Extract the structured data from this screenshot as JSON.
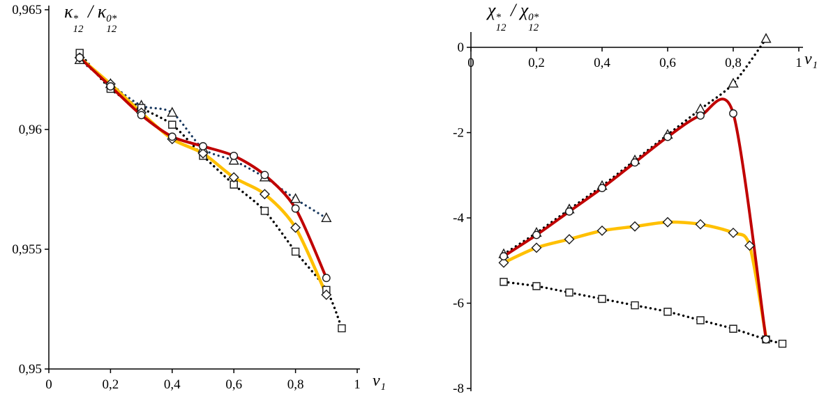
{
  "figure": {
    "background": "#ffffff",
    "axis_color": "#000000"
  },
  "chart_data": [
    {
      "id": "kappa",
      "type": "line",
      "title_segments": [
        {
          "base": "κ",
          "sup": "*",
          "sub": "12"
        },
        {
          "text": " / "
        },
        {
          "base": "κ",
          "sup": "0*",
          "sub": "12"
        }
      ],
      "xlabel_segments": [
        {
          "base": "v",
          "sub": "1"
        }
      ],
      "xlim": [
        0,
        1
      ],
      "ylim": [
        0.95,
        0.965
      ],
      "x_ticks": [
        {
          "v": 0,
          "label": "0"
        },
        {
          "v": 0.2,
          "label": "0,2"
        },
        {
          "v": 0.4,
          "label": "0,4"
        },
        {
          "v": 0.6,
          "label": "0,6"
        },
        {
          "v": 0.8,
          "label": "0,8"
        },
        {
          "v": 1,
          "label": "1"
        }
      ],
      "y_ticks": [
        {
          "v": 0.95,
          "label": "0,95"
        },
        {
          "v": 0.955,
          "label": "0,955"
        },
        {
          "v": 0.96,
          "label": "0,96"
        },
        {
          "v": 0.965,
          "label": "0,965"
        }
      ],
      "series": [
        {
          "name": "triangles",
          "marker": "triangle",
          "line": "dotted",
          "color": "#17375E",
          "width": 3.2,
          "points": [
            [
              0.1,
              0.9629
            ],
            [
              0.2,
              0.9619
            ],
            [
              0.3,
              0.961
            ],
            [
              0.4,
              0.9607
            ],
            [
              0.5,
              0.9592
            ],
            [
              0.6,
              0.9587
            ],
            [
              0.7,
              0.958
            ],
            [
              0.8,
              0.9571
            ],
            [
              0.9,
              0.9563
            ]
          ]
        },
        {
          "name": "squares",
          "marker": "square",
          "line": "dotted",
          "color": "#000000",
          "width": 3.4,
          "points": [
            [
              0.1,
              0.9632
            ],
            [
              0.2,
              0.9617
            ],
            [
              0.3,
              0.9609
            ],
            [
              0.4,
              0.9602
            ],
            [
              0.5,
              0.9589
            ],
            [
              0.6,
              0.9577
            ],
            [
              0.7,
              0.9566
            ],
            [
              0.8,
              0.9549
            ],
            [
              0.9,
              0.9533
            ],
            [
              0.95,
              0.9517
            ]
          ]
        },
        {
          "name": "diamonds",
          "marker": "diamond",
          "line": "solid",
          "color": "#FFC000",
          "width": 4.5,
          "points": [
            [
              0.1,
              0.963
            ],
            [
              0.2,
              0.9619
            ],
            [
              0.3,
              0.9607
            ],
            [
              0.4,
              0.9596
            ],
            [
              0.5,
              0.959
            ],
            [
              0.6,
              0.958
            ],
            [
              0.7,
              0.9573
            ],
            [
              0.8,
              0.9559
            ],
            [
              0.9,
              0.9531
            ]
          ]
        },
        {
          "name": "circles",
          "marker": "circle",
          "line": "solid",
          "color": "#C00000",
          "width": 4,
          "points": [
            [
              0.1,
              0.963
            ],
            [
              0.2,
              0.9618
            ],
            [
              0.3,
              0.9606
            ],
            [
              0.4,
              0.9597
            ],
            [
              0.5,
              0.9593
            ],
            [
              0.6,
              0.9589
            ],
            [
              0.7,
              0.9581
            ],
            [
              0.8,
              0.9567
            ],
            [
              0.9,
              0.9538
            ]
          ]
        }
      ]
    },
    {
      "id": "chi",
      "type": "line",
      "title_segments": [
        {
          "base": "χ",
          "sup": "*",
          "sub": "12"
        },
        {
          "text": " / "
        },
        {
          "base": "χ",
          "sup": "0*",
          "sub": "12"
        }
      ],
      "xlabel_segments": [
        {
          "base": "v",
          "sub": "1"
        }
      ],
      "xlim": [
        0,
        1
      ],
      "ylim": [
        -8,
        0
      ],
      "x_ticks": [
        {
          "v": 0,
          "label": "0"
        },
        {
          "v": 0.2,
          "label": "0,2"
        },
        {
          "v": 0.4,
          "label": "0,4"
        },
        {
          "v": 0.6,
          "label": "0,6"
        },
        {
          "v": 0.8,
          "label": "0,8"
        },
        {
          "v": 1,
          "label": "1"
        }
      ],
      "y_ticks": [
        {
          "v": 0,
          "label": "0"
        },
        {
          "v": -2,
          "label": "-2"
        },
        {
          "v": -4,
          "label": "-4"
        },
        {
          "v": -6,
          "label": "-6"
        },
        {
          "v": -8,
          "label": "-8"
        }
      ],
      "series": [
        {
          "name": "triangles",
          "marker": "triangle",
          "line": "dotted",
          "color": "#000000",
          "width": 3.4,
          "points": [
            [
              0.1,
              -4.85
            ],
            [
              0.2,
              -4.35
            ],
            [
              0.3,
              -3.8
            ],
            [
              0.4,
              -3.25
            ],
            [
              0.5,
              -2.65
            ],
            [
              0.6,
              -2.05
            ],
            [
              0.7,
              -1.45
            ],
            [
              0.8,
              -0.85
            ],
            [
              0.9,
              0.2
            ]
          ]
        },
        {
          "name": "squares",
          "marker": "square",
          "line": "dotted",
          "color": "#000000",
          "width": 3.4,
          "points": [
            [
              0.1,
              -5.5
            ],
            [
              0.2,
              -5.6
            ],
            [
              0.3,
              -5.75
            ],
            [
              0.4,
              -5.9
            ],
            [
              0.5,
              -6.05
            ],
            [
              0.6,
              -6.2
            ],
            [
              0.7,
              -6.4
            ],
            [
              0.8,
              -6.6
            ],
            [
              0.9,
              -6.85
            ],
            [
              0.95,
              -6.95
            ]
          ]
        },
        {
          "name": "diamonds",
          "marker": "diamond",
          "line": "solid",
          "color": "#FFC000",
          "width": 4.5,
          "marker_last": false,
          "points": [
            [
              0.1,
              -5.05
            ],
            [
              0.2,
              -4.7
            ],
            [
              0.3,
              -4.5
            ],
            [
              0.4,
              -4.3
            ],
            [
              0.5,
              -4.2
            ],
            [
              0.6,
              -4.1
            ],
            [
              0.7,
              -4.15
            ],
            [
              0.8,
              -4.35
            ],
            [
              0.85,
              -4.65
            ],
            [
              0.9,
              -6.8
            ]
          ]
        },
        {
          "name": "circles",
          "marker": "circle",
          "line": "solid",
          "color": "#C00000",
          "width": 4,
          "points": [
            [
              0.1,
              -4.9
            ],
            [
              0.2,
              -4.4
            ],
            [
              0.3,
              -3.85
            ],
            [
              0.4,
              -3.3
            ],
            [
              0.5,
              -2.7
            ],
            [
              0.6,
              -2.1
            ],
            [
              0.7,
              -1.6
            ],
            [
              0.8,
              -1.55
            ],
            [
              0.9,
              -6.85
            ]
          ]
        }
      ]
    }
  ]
}
